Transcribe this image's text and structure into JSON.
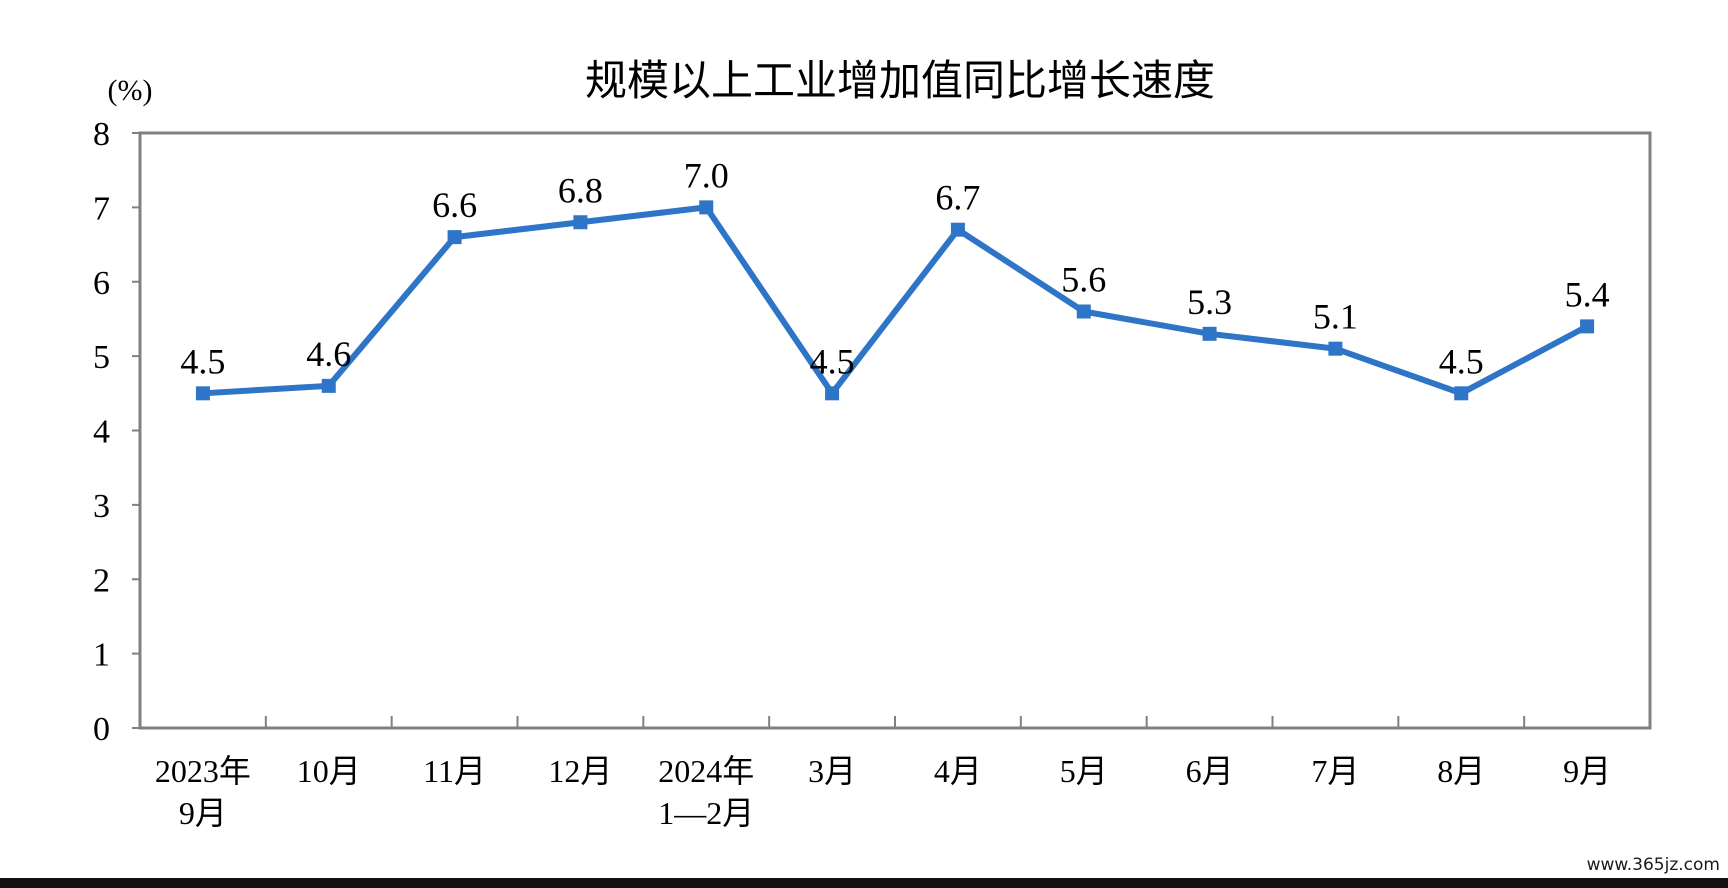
{
  "chart_data": {
    "type": "line",
    "title": "规模以上工业增加值同比增长速度",
    "unit_label": "(%)",
    "categories": [
      [
        "2023年",
        "9月"
      ],
      [
        "10月"
      ],
      [
        "11月"
      ],
      [
        "12月"
      ],
      [
        "2024年",
        "1—2月"
      ],
      [
        "3月"
      ],
      [
        "4月"
      ],
      [
        "5月"
      ],
      [
        "6月"
      ],
      [
        "7月"
      ],
      [
        "8月"
      ],
      [
        "9月"
      ]
    ],
    "values": [
      4.5,
      4.6,
      6.6,
      6.8,
      7.0,
      4.5,
      6.7,
      5.6,
      5.3,
      5.1,
      4.5,
      5.4
    ],
    "value_labels": [
      "4.5",
      "4.6",
      "6.6",
      "6.8",
      "7.0",
      "4.5",
      "6.7",
      "5.6",
      "5.3",
      "5.1",
      "4.5",
      "5.4"
    ],
    "yticks": [
      "0",
      "1",
      "2",
      "3",
      "4",
      "5",
      "6",
      "7",
      "8"
    ],
    "ylim": [
      0,
      8
    ],
    "grid": false,
    "legend": "none",
    "line_color": "#2e75c8",
    "frame_color": "#808080"
  },
  "watermark": "www.365jz.com"
}
